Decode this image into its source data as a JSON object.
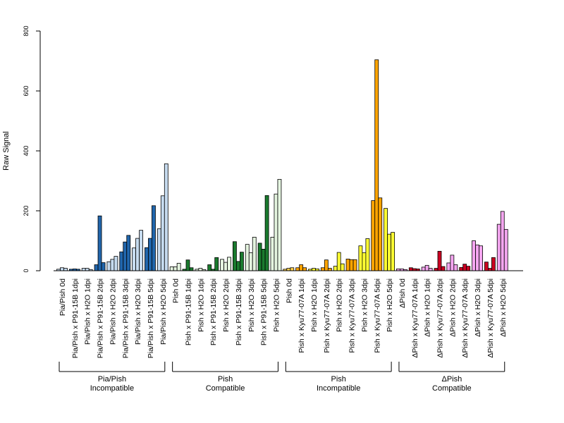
{
  "chart_data": {
    "type": "bar",
    "ylabel": "Raw Signal",
    "ylim": [
      0,
      800
    ],
    "y_ticks": [
      "0",
      "200",
      "400",
      "600",
      "800"
    ],
    "grid": false,
    "categories": [
      "Pia/Pish 0d",
      "Pia/Pish x P91-15B 1dpi",
      "Pia/Pish x H2O 1dpi",
      "Pia/Pish x P91-15B 2dpi",
      "Pia/Pish x H2O 2dpi",
      "Pia/Pish x P91-15B 3dpi",
      "Pia/Pish x H2O 3dpi",
      "Pia/Pish x P91-15B 5dpi",
      "Pia/Pish x H2O 5dpi",
      "Pish 0d",
      "Pish x P91-15B 1dpi",
      "Pish x H2O 1dpi",
      "Pish x P91-15B 2dpi",
      "Pish x H2O 2dpi",
      "Pish x P91-15B 3dpi",
      "Pish x H2O 3dpi",
      "Pish x P91-15B 5dpi",
      "Pish x H2O 5dpi",
      "Pish 0d",
      "Pish x Kyu77-07A 1dpi",
      "Pish x H2O 1dpi",
      "Pish x Kyu77-07A 2dpi",
      "Pish x H2O 2dpi",
      "Pish x Kyu77-07A 3dpi",
      "Pish x H2O 3dpi",
      "Pish x Kyu77-07A 5dpi",
      "Pish x H2O 5dpi",
      "ΔPish 0d",
      "ΔPish x Kyu77-07A 1dpi",
      "ΔPish x H2O 1dpi",
      "ΔPish x Kyu77-07A 2dpi",
      "ΔPish x H2O 2dpi",
      "ΔPish x Kyu77-07A 3dpi",
      "ΔPish x H2O 3dpi",
      "ΔPish x Kyu77-07A 5dpi",
      "ΔPish x H2O 5dpi"
    ],
    "values": [
      [
        5,
        10,
        8
      ],
      [
        5,
        6,
        5
      ],
      [
        8,
        8,
        4
      ],
      [
        20,
        183,
        27
      ],
      [
        30,
        38,
        48
      ],
      [
        63,
        96,
        118
      ],
      [
        76,
        108,
        135
      ],
      [
        77,
        108,
        217
      ],
      [
        140,
        250,
        357
      ],
      [
        13,
        13,
        25
      ],
      [
        5,
        36,
        10
      ],
      [
        5,
        8,
        4
      ],
      [
        20,
        5,
        44
      ],
      [
        38,
        28,
        45
      ],
      [
        97,
        31,
        62
      ],
      [
        88,
        60,
        112
      ],
      [
        92,
        72,
        251
      ],
      [
        112,
        256,
        305
      ],
      [
        5,
        8,
        10
      ],
      [
        10,
        20,
        10
      ],
      [
        5,
        8,
        6
      ],
      [
        10,
        36,
        8
      ],
      [
        15,
        61,
        23
      ],
      [
        39,
        37,
        37
      ],
      [
        83,
        60,
        107
      ],
      [
        234,
        704,
        243
      ],
      [
        208,
        122,
        128
      ],
      [
        6,
        6,
        4
      ],
      [
        10,
        7,
        6
      ],
      [
        12,
        18,
        8
      ],
      [
        8,
        65,
        14
      ],
      [
        26,
        52,
        20
      ],
      [
        11,
        22,
        15
      ],
      [
        100,
        86,
        83
      ],
      [
        29,
        8,
        44
      ],
      [
        155,
        198,
        138
      ]
    ],
    "colors": [
      "#c6dbef",
      "#2166ac",
      "#c6dbef",
      "#2166ac",
      "#c6dbef",
      "#2166ac",
      "#c6dbef",
      "#2166ac",
      "#c6dbef",
      "#e5f5e0",
      "#1a7a2e",
      "#e5f5e0",
      "#1a7a2e",
      "#e5f5e0",
      "#1a7a2e",
      "#e5f5e0",
      "#1a7a2e",
      "#e5f5e0",
      "#ffd24d",
      "#ffa500",
      "#ffff33",
      "#ffa500",
      "#ffff33",
      "#ffa500",
      "#ffff33",
      "#ffa500",
      "#ffff33",
      "#f4a6f0",
      "#cc0022",
      "#f4a6f0",
      "#cc0022",
      "#f4a6f0",
      "#cc0022",
      "#f4a6f0",
      "#cc0022",
      "#f4a6f0"
    ],
    "groups": [
      {
        "label_line1": "Pia/Pish",
        "label_line2": "Incompatible",
        "from": 0,
        "to": 8
      },
      {
        "label_line1": "Pish",
        "label_line2": "Compatible",
        "from": 9,
        "to": 17
      },
      {
        "label_line1": "Pish",
        "label_line2": "Incompatible",
        "from": 18,
        "to": 26
      },
      {
        "label_line1": "ΔPish",
        "label_line2": "Compatible",
        "from": 27,
        "to": 35
      }
    ]
  }
}
